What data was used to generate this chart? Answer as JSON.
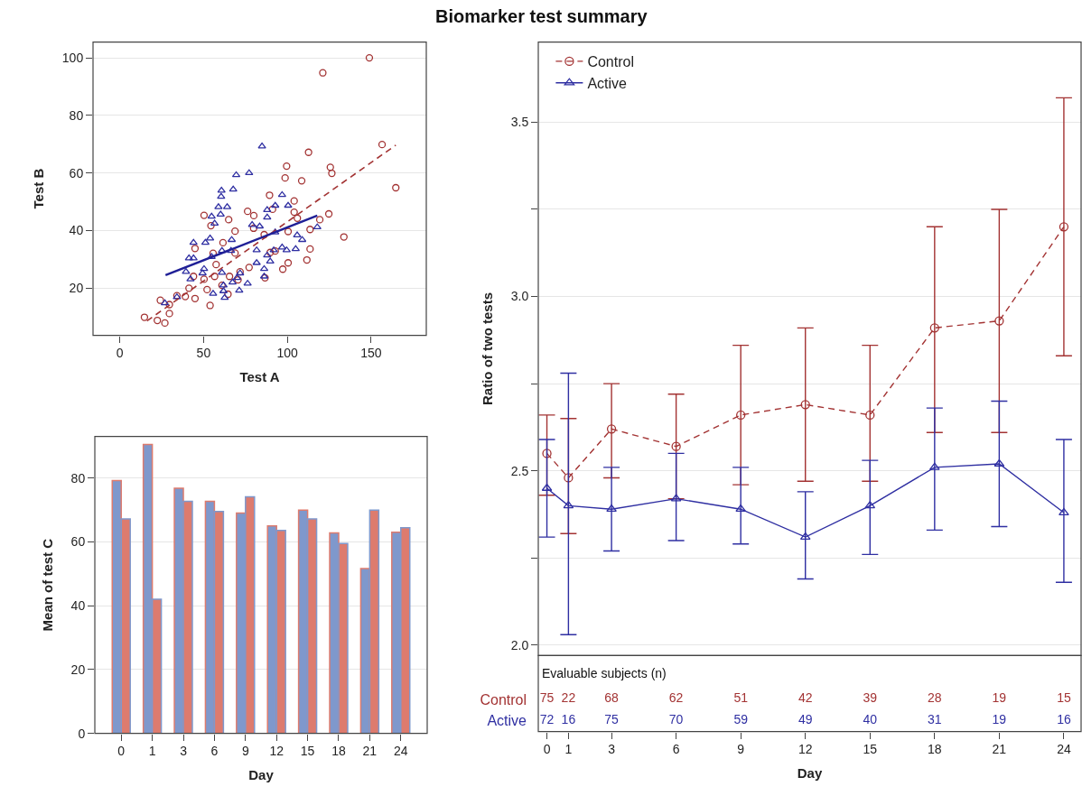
{
  "chart_data": [
    {
      "type": "scatter",
      "xlabel": "Test A",
      "ylabel": "Test B",
      "xlim": [
        -16,
        183
      ],
      "ylim": [
        3.6,
        105.5
      ],
      "xticks": [
        0,
        50,
        100,
        150
      ],
      "yticks": [
        20,
        40,
        60,
        80,
        100
      ],
      "grid": "y",
      "series": [
        {
          "color": "#a33333",
          "marker": "circle",
          "x": [
            149,
            121.2,
            156.6,
            164.8,
            112.7,
            99.6,
            98.7,
            108.6,
            125.7,
            126.6,
            89.4,
            104.1,
            91.2,
            76.3,
            50.3,
            80,
            65,
            54.4,
            68.8,
            79.9,
            106,
            119.4,
            124.8,
            100.5,
            113.6,
            133.8,
            86.2,
            44.9,
            61.6,
            68.8,
            55.7,
            113.6,
            111.7,
            100.5,
            97.3,
            86.7,
            77.2,
            71.8,
            65.5,
            56.6,
            50.3,
            44,
            41.3,
            52.1,
            61,
            64.6,
            53.9,
            44.9,
            39.1,
            34.1,
            29.6,
            24.2,
            29.6,
            14.7,
            22.4,
            26.9,
            89.8,
            92.8,
            70.6,
            57.5,
            104.1
          ],
          "values": [
            100,
            94.8,
            69.9,
            54.9,
            67.2,
            62.4,
            58.3,
            57.3,
            62,
            59.9,
            52.3,
            50.3,
            47.4,
            46.7,
            45.3,
            45.2,
            43.8,
            41.7,
            39.8,
            40.8,
            44.3,
            43.8,
            45.8,
            39.7,
            40.4,
            37.8,
            38.6,
            33.8,
            35.8,
            32.2,
            32.1,
            33.6,
            29.8,
            28.8,
            26.6,
            23.6,
            27.2,
            25.7,
            24.1,
            24.1,
            23.1,
            24.1,
            20,
            19.5,
            21,
            17.9,
            14,
            16.4,
            17.1,
            17.4,
            14.3,
            15.8,
            11.2,
            9.9,
            8.8,
            7.9,
            32.4,
            32.9,
            22.9,
            28.2,
            46.4
          ]
        },
        {
          "color": "#2f2fa2",
          "marker": "triangle",
          "x": [
            84.9,
            69.5,
            77.2,
            60.7,
            67.7,
            60.5,
            58.9,
            64.1,
            60.2,
            54.8,
            96.9,
            100.5,
            92.8,
            88,
            88,
            79,
            83.5,
            56.6,
            53.9,
            51.1,
            44,
            66.8,
            81.7,
            91.9,
            92.8,
            105.9,
            108.9,
            105,
            99.6,
            96.9,
            117.9,
            41.3,
            44,
            54.8,
            61,
            66.4,
            50.3,
            49.4,
            39.5,
            42.2,
            61,
            70,
            71.8,
            61.9,
            67.3,
            76.3,
            81.7,
            86.2,
            89.8,
            88,
            86.2,
            55.7,
            61.9,
            71.3,
            62.6,
            34.1,
            26.9
          ],
          "values": [
            69.3,
            59.3,
            60,
            53.9,
            54.3,
            51.8,
            48.2,
            48.2,
            45.6,
            44.9,
            52.4,
            48.7,
            48.7,
            47.2,
            44.6,
            42,
            41.5,
            42.5,
            37.3,
            35.8,
            35.8,
            36.8,
            33.2,
            33.2,
            39.4,
            38.4,
            36.8,
            33.6,
            33.2,
            34.2,
            41.2,
            30.4,
            30.4,
            30.9,
            33,
            33,
            26.7,
            25.2,
            25.7,
            23.1,
            25.4,
            23.6,
            25.2,
            21,
            22,
            21.6,
            28.8,
            26.7,
            29.3,
            31.4,
            24.1,
            18.1,
            19,
            19.2,
            16.7,
            16.9,
            14.8
          ]
        },
        {
          "type": "line",
          "color": "#a33333",
          "line_style": "dashed",
          "x": [
            16.2,
            164.8
          ],
          "values": [
            8.6,
            69.7
          ]
        },
        {
          "type": "line",
          "color": "#1f1f96",
          "line_style": "solid",
          "x": [
            27.3,
            117.9
          ],
          "values": [
            24.5,
            45.2
          ]
        }
      ]
    },
    {
      "type": "bar",
      "xlabel": "Day",
      "ylabel": "Mean of test C",
      "categories": [
        "0",
        "1",
        "3",
        "6",
        "9",
        "12",
        "15",
        "18",
        "21",
        "24"
      ],
      "ylim": [
        0,
        93
      ],
      "yticks": [
        0,
        20,
        40,
        60,
        80
      ],
      "grid": "y",
      "series": [
        {
          "color": "#7f98cc",
          "values": [
            79.2,
            90.5,
            76.8,
            72.7,
            69.0,
            65.0,
            69.9,
            62.8,
            51.6,
            63.0
          ]
        },
        {
          "color": "#dd7b6e",
          "values": [
            67.2,
            42.0,
            72.7,
            69.5,
            74.1,
            63.6,
            67.2,
            59.5,
            69.9,
            64.4
          ]
        }
      ]
    },
    {
      "type": "line",
      "title": "Biomarker test summary",
      "ylabel": "Ratio of two tests",
      "x": [
        0,
        1,
        3,
        6,
        9,
        12,
        15,
        18,
        21,
        24
      ],
      "xlim": [
        -0.4,
        24.8
      ],
      "ylim": [
        1.97,
        3.73
      ],
      "xticks": [
        0,
        1,
        3,
        6,
        9,
        12,
        15,
        18,
        21,
        24
      ],
      "yticks": [
        {
          "value": 2,
          "label": "2.0"
        },
        {
          "value": 2.25,
          "label": null
        },
        2.5,
        {
          "value": 2.75,
          "label": null
        },
        {
          "value": 3,
          "label": "3.0"
        },
        {
          "value": 3.25,
          "label": null
        },
        3.5
      ],
      "tick_labels": "y",
      "grid": "y",
      "legend": "top left",
      "series": [
        {
          "name": "Control",
          "color": "#a33333",
          "marker": "circle",
          "line_style": "dashed",
          "values": [
            2.55,
            2.48,
            2.62,
            2.57,
            2.66,
            2.69,
            2.66,
            2.91,
            2.93,
            3.2
          ],
          "errors": [
            [
              2.43,
              2.66
            ],
            [
              2.32,
              2.65
            ],
            [
              2.48,
              2.75
            ],
            [
              2.42,
              2.72
            ],
            [
              2.46,
              2.86
            ],
            [
              2.47,
              2.91
            ],
            [
              2.47,
              2.86
            ],
            [
              2.61,
              3.2
            ],
            [
              2.61,
              3.25
            ],
            [
              2.83,
              3.57
            ]
          ]
        },
        {
          "name": "Active",
          "color": "#2f2fa2",
          "marker": "triangle",
          "line_style": "solid",
          "values": [
            2.45,
            2.4,
            2.39,
            2.42,
            2.39,
            2.31,
            2.4,
            2.51,
            2.52,
            2.38
          ],
          "errors": [
            [
              2.31,
              2.59
            ],
            [
              2.03,
              2.78
            ],
            [
              2.27,
              2.51
            ],
            [
              2.3,
              2.55
            ],
            [
              2.29,
              2.51
            ],
            [
              2.19,
              2.44
            ],
            [
              2.26,
              2.53
            ],
            [
              2.33,
              2.68
            ],
            [
              2.34,
              2.7
            ],
            [
              2.18,
              2.59
            ]
          ]
        }
      ]
    },
    {
      "type": "heatmap",
      "title": "Evaluable subjects (n)",
      "xlabel": "Day",
      "x": [
        0,
        1,
        3,
        6,
        9,
        12,
        15,
        18,
        21,
        24
      ],
      "xlim": [
        -0.4,
        24.8
      ],
      "xticks": [
        0,
        1,
        3,
        6,
        9,
        12,
        15,
        18,
        21,
        24
      ],
      "y_categories": [
        "Control",
        "Active"
      ],
      "colors": [
        "#a33333",
        "#2f2fa2"
      ],
      "tick_labels": "xy",
      "data_labels": true,
      "cells": [
        [
          75,
          22,
          68,
          62,
          51,
          42,
          39,
          28,
          19,
          15
        ],
        [
          72,
          16,
          75,
          70,
          59,
          49,
          40,
          31,
          19,
          16
        ]
      ]
    }
  ]
}
